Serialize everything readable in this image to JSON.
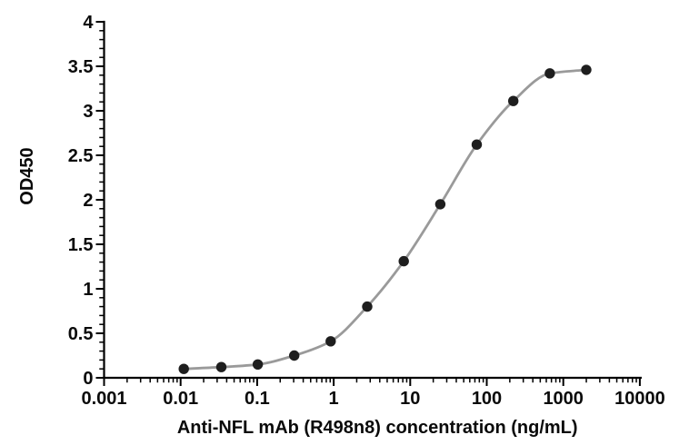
{
  "chart_data": {
    "type": "scatter",
    "title": "",
    "xlabel": "Anti-NFL mAb (R498n8) concentration (ng/mL)",
    "ylabel": "OD450",
    "x_scale": "log10",
    "xlim": [
      0.001,
      10000
    ],
    "ylim": [
      0,
      4
    ],
    "grid": false,
    "legend_position": "none",
    "x_tick_values": [
      0.001,
      0.01,
      0.1,
      1,
      10,
      100,
      1000,
      10000
    ],
    "x_tick_labels": [
      "0.001",
      "0.01",
      "0.1",
      "1",
      "10",
      "100",
      "1000",
      "10000"
    ],
    "y_tick_values": [
      0,
      0.5,
      1,
      1.5,
      2,
      2.5,
      3,
      3.5,
      4
    ],
    "y_tick_labels": [
      "0",
      "0.5",
      "1",
      "1.5",
      "2",
      "2.5",
      "3",
      "3.5",
      "4"
    ],
    "y_minor_step": 0.1,
    "x_minor_ticks": "log-decades-2-9",
    "series": [
      {
        "name": "Anti-NFL mAb (R498n8)",
        "x": [
          0.011,
          0.034,
          0.102,
          0.305,
          0.914,
          2.74,
          8.23,
          24.7,
          74.1,
          222.2,
          666.7,
          2000
        ],
        "y": [
          0.1,
          0.12,
          0.15,
          0.25,
          0.41,
          0.8,
          1.31,
          1.95,
          2.62,
          3.11,
          3.42,
          3.46
        ],
        "marker": "circle",
        "fit": "smooth-sigmoid"
      }
    ],
    "colors": {
      "marker": "#1e1e1e",
      "fit_line": "#9a9a9a",
      "axis": "#000000",
      "text": "#0a0a0a",
      "background": "#ffffff"
    }
  }
}
